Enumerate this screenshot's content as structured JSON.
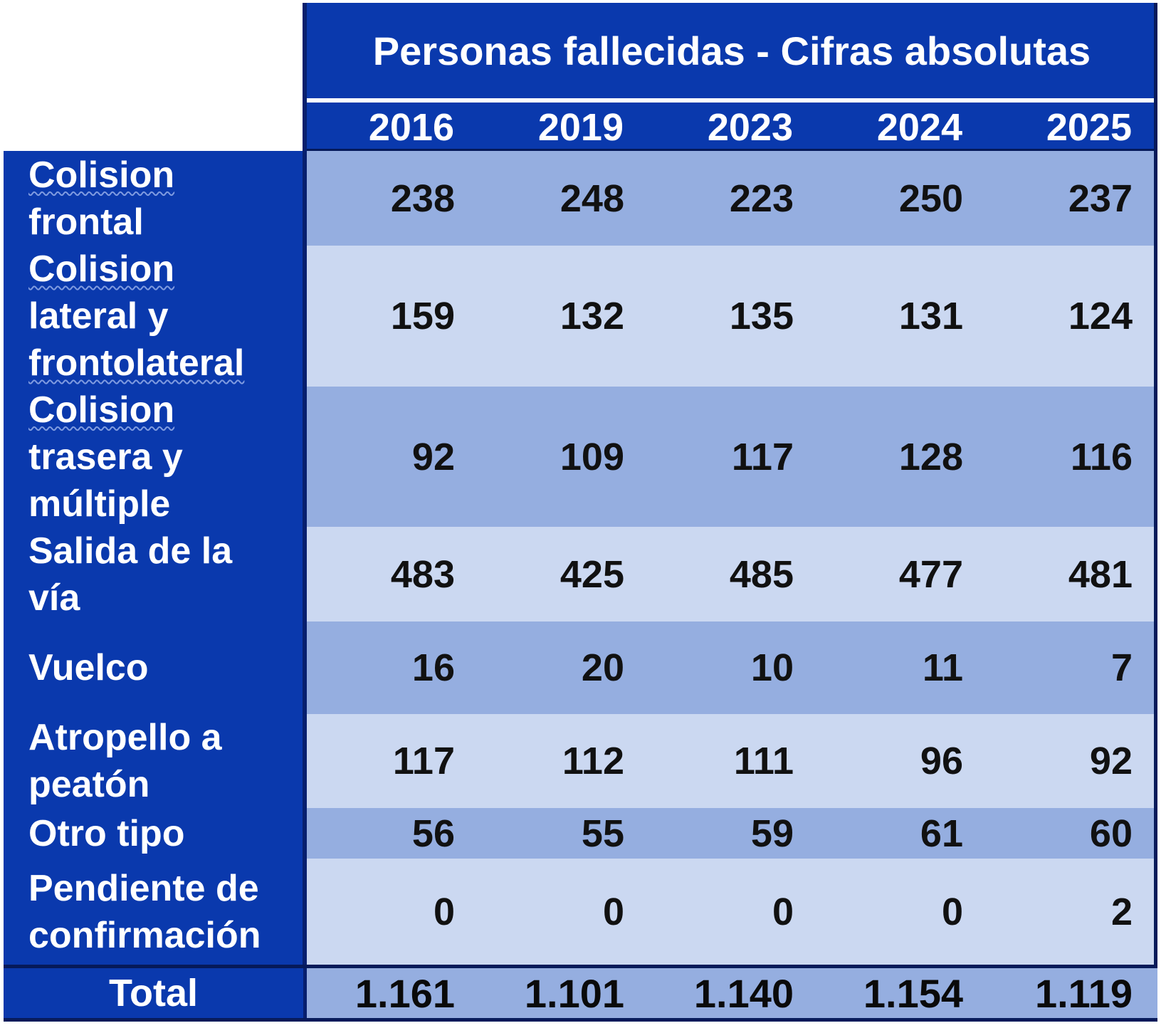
{
  "chart_data": {
    "type": "table",
    "title": "Personas fallecidas - Cifras absolutas",
    "columns": [
      "2016",
      "2019",
      "2023",
      "2024",
      "2025"
    ],
    "rows": [
      {
        "label": "Colision frontal",
        "label_lines": [
          "Colision",
          "frontal"
        ],
        "values": [
          238,
          248,
          223,
          250,
          237
        ],
        "display": [
          "238",
          "248",
          "223",
          "250",
          "237"
        ]
      },
      {
        "label": "Colision lateral y frontolateral",
        "label_lines": [
          "Colision",
          "lateral y",
          "frontolateral"
        ],
        "values": [
          159,
          132,
          135,
          131,
          124
        ],
        "display": [
          "159",
          "132",
          "135",
          "131",
          "124"
        ]
      },
      {
        "label": "Colision trasera y múltiple",
        "label_lines": [
          "Colision",
          "trasera y",
          "múltiple"
        ],
        "values": [
          92,
          109,
          117,
          128,
          116
        ],
        "display": [
          "92",
          "109",
          "117",
          "128",
          "116"
        ]
      },
      {
        "label": "Salida de la vía",
        "label_lines": [
          "Salida de la",
          "vía"
        ],
        "values": [
          483,
          425,
          485,
          477,
          481
        ],
        "display": [
          "483",
          "425",
          "485",
          "477",
          "481"
        ]
      },
      {
        "label": "Vuelco",
        "label_lines": [
          "Vuelco"
        ],
        "values": [
          16,
          20,
          10,
          11,
          7
        ],
        "display": [
          "16",
          "20",
          "10",
          "11",
          "7"
        ]
      },
      {
        "label": "Atropello a peatón",
        "label_lines": [
          "Atropello a",
          "peatón"
        ],
        "values": [
          117,
          112,
          111,
          96,
          92
        ],
        "display": [
          "117",
          "112",
          "111",
          "96",
          "92"
        ]
      },
      {
        "label": "Otro tipo",
        "label_lines": [
          "Otro tipo"
        ],
        "values": [
          56,
          55,
          59,
          61,
          60
        ],
        "display": [
          "56",
          "55",
          "59",
          "61",
          "60"
        ]
      },
      {
        "label": "Pendiente de confirmación",
        "label_lines": [
          "Pendiente de",
          "confirmación"
        ],
        "values": [
          0,
          0,
          0,
          0,
          2
        ],
        "display": [
          "0",
          "0",
          "0",
          "0",
          "2"
        ]
      }
    ],
    "total": {
      "label": "Total",
      "values": [
        1161,
        1101,
        1140,
        1154,
        1119
      ],
      "display": [
        "1.161",
        "1.101",
        "1.140",
        "1.154",
        "1.119"
      ]
    }
  },
  "colors": {
    "header_blue": "#0a39ad",
    "row_dark": "#95aee0",
    "row_light": "#cbd8f1",
    "border_dark": "#061a5a"
  }
}
